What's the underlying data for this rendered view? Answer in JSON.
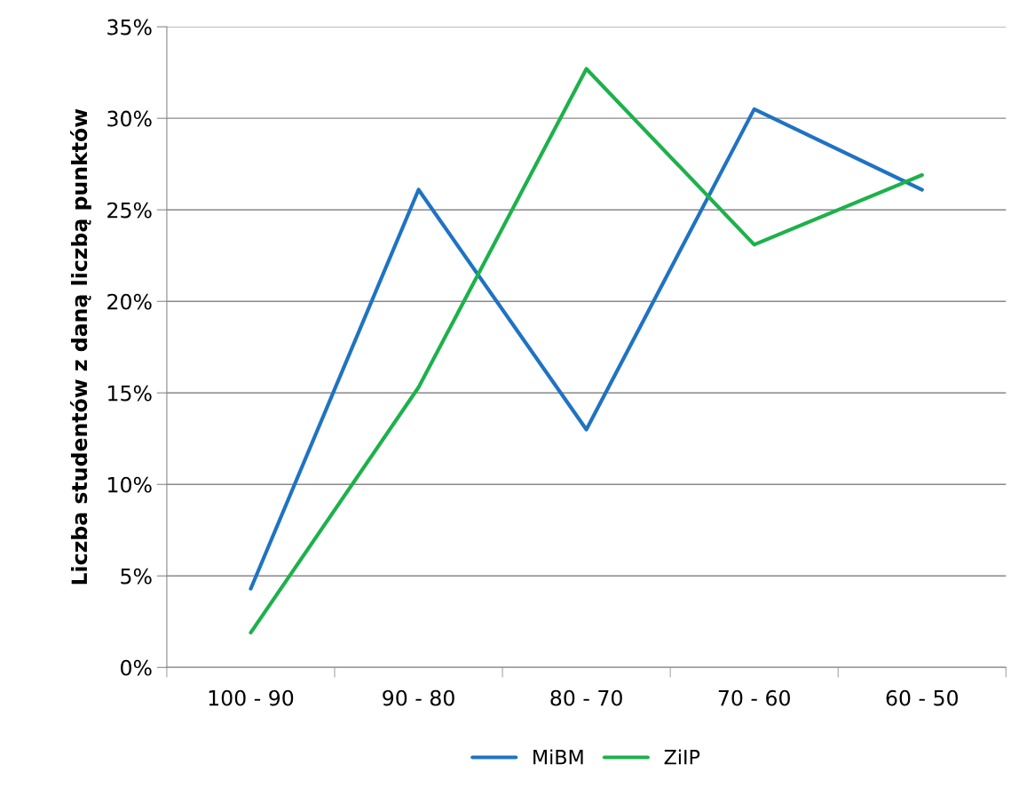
{
  "chart_data": {
    "type": "line",
    "ylabel": "Liczba studentów z daną liczbą punktów",
    "categories": [
      "100 - 90",
      "90 - 80",
      "80 - 70",
      "70 - 60",
      "60 - 50"
    ],
    "series": [
      {
        "name": "MiBM",
        "color": "#1f73c2",
        "values": [
          4.3,
          26.1,
          13.0,
          30.5,
          26.1
        ]
      },
      {
        "name": "ZiIP",
        "color": "#1db14b",
        "values": [
          1.9,
          15.3,
          32.7,
          23.1,
          26.9
        ]
      }
    ],
    "ylim": [
      0,
      35
    ],
    "yticks": [
      {
        "value": 0,
        "label": "0%"
      },
      {
        "value": 5,
        "label": "5%"
      },
      {
        "value": 10,
        "label": "10%"
      },
      {
        "value": 15,
        "label": "15%"
      },
      {
        "value": 20,
        "label": "20%"
      },
      {
        "value": 25,
        "label": "25%"
      },
      {
        "value": 30,
        "label": "30%"
      },
      {
        "value": 35,
        "label": "35%"
      }
    ],
    "grid": "y",
    "legend": "bottom",
    "marker": "none",
    "line_style": "solid"
  }
}
